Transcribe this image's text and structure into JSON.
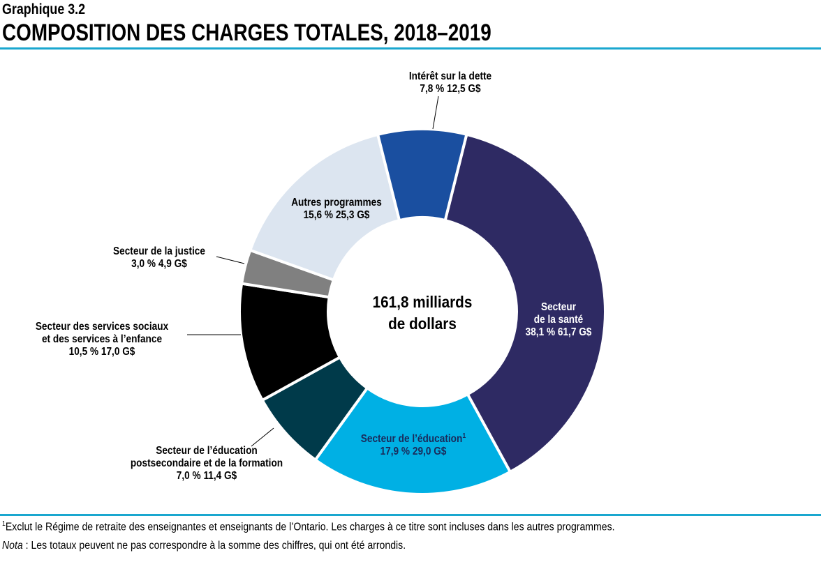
{
  "subtitle": "Graphique 3.2",
  "title": "COMPOSITION DES CHARGES TOTALES, 2018–2019",
  "chart_data": {
    "type": "pie",
    "donut": true,
    "center_label": [
      "161,8 milliards",
      "de dollars"
    ],
    "slices": [
      {
        "label": "Secteur de la santé",
        "percent": 38.1,
        "value": 61.7,
        "value_label": "38,1 %  61,7 G$",
        "color": "#2e2a63"
      },
      {
        "label": "Secteur de l’éducation",
        "footnote": "1",
        "percent": 17.9,
        "value": 29.0,
        "value_label": "17,9 %  29,0 G$",
        "color": "#00b0e4"
      },
      {
        "label": "Secteur de l’éducation postsecondaire et de la formation",
        "percent": 7.0,
        "value": 11.4,
        "value_label": "7,0 %  11,4 G$",
        "color": "#003a4a"
      },
      {
        "label": "Secteur des services sociaux et des services à l’enfance",
        "percent": 10.5,
        "value": 17.0,
        "value_label": "10,5 %  17,0 G$",
        "color": "#000000"
      },
      {
        "label": "Secteur de la justice",
        "percent": 3.0,
        "value": 4.9,
        "value_label": "3,0 %  4,9 G$",
        "color": "#808080"
      },
      {
        "label": "Autres programmes",
        "percent": 15.6,
        "value": 25.3,
        "value_label": "15,6 %  25,3 G$",
        "color": "#dce5f0"
      },
      {
        "label": "Intérêt sur la dette",
        "percent": 7.8,
        "value": 12.5,
        "value_label": "7,8 %  12,5 G$",
        "color": "#1a4fa0"
      }
    ],
    "label_lines": {
      "sante": [
        "Secteur",
        "de la santé"
      ],
      "education": "Secteur de l’éducation",
      "postsec": [
        "Secteur de l’éducation",
        "postsecondaire et de la formation"
      ],
      "social": [
        "Secteur des services sociaux",
        "et des services à l’enfance"
      ]
    }
  },
  "footnotes": {
    "note1_marker": "1",
    "note1": "Exclut le Régime de retraite des enseignantes et enseignants de l’Ontario. Les charges à ce titre sont incluses dans les autres programmes.",
    "nota_label": "Nota",
    "nota": " : Les totaux peuvent ne pas correspondre à la somme des chiffres, qui ont été arrondis."
  },
  "accent": "#1aa7cf"
}
